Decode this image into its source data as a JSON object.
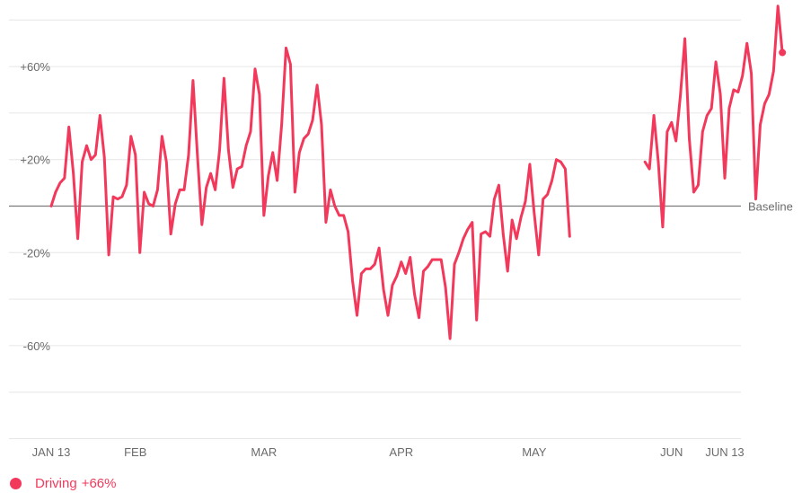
{
  "chart_data": {
    "type": "line",
    "title": "",
    "xlabel": "",
    "ylabel": "",
    "ylim": [
      -100,
      85
    ],
    "y_ticks": [
      {
        "value": 60,
        "label": "+60%"
      },
      {
        "value": 20,
        "label": "+20%"
      },
      {
        "value": -20,
        "label": "-20%"
      },
      {
        "value": -60,
        "label": "-60%"
      }
    ],
    "gridlines": [
      80,
      40,
      0,
      -40,
      -80,
      -100
    ],
    "baseline": {
      "value": 0,
      "label": "Baseline"
    },
    "x_start": "2020-01-13",
    "x_end": "2020-06-13",
    "x_ticks": [
      {
        "date": "2020-01-13",
        "label": "JAN 13"
      },
      {
        "date": "2020-02-01",
        "label": "FEB"
      },
      {
        "date": "2020-03-01",
        "label": "MAR"
      },
      {
        "date": "2020-04-01",
        "label": "APR"
      },
      {
        "date": "2020-05-01",
        "label": "MAY"
      },
      {
        "date": "2020-06-01",
        "label": "JUN"
      },
      {
        "date": "2020-06-13",
        "label": "JUN 13"
      }
    ],
    "series": [
      {
        "name": "Driving",
        "color": "#f2395b",
        "segments": [
          {
            "start": "2020-01-13",
            "values": [
              0,
              6,
              10,
              12,
              34,
              14,
              -14,
              19,
              26,
              20,
              22,
              39,
              21,
              -21,
              4,
              3,
              4,
              9,
              30,
              22,
              -20,
              6,
              1,
              0,
              7,
              30,
              19,
              -12,
              1,
              7,
              7,
              22,
              54,
              22,
              -8,
              8,
              14,
              7,
              24,
              55,
              24,
              8,
              16,
              17,
              26,
              32,
              59,
              48,
              -4,
              13,
              23,
              11,
              35,
              68,
              61,
              6,
              23,
              29,
              31,
              37,
              52,
              35,
              -7,
              7,
              0,
              -4,
              -4,
              -11,
              -32,
              -47,
              -29,
              -27,
              -27,
              -25,
              -18,
              -36,
              -47,
              -34,
              -30,
              -24,
              -29,
              -22,
              -38,
              -48,
              -28,
              -26,
              -23,
              -23,
              -23,
              -35,
              -57,
              -25,
              -20,
              -14,
              -10,
              -7,
              -49,
              -12,
              -11,
              -13,
              3,
              9,
              -12,
              -28,
              -6,
              -14,
              -5,
              2,
              18,
              -3,
              -21,
              3,
              5,
              11,
              20,
              19,
              16,
              -13
            ]
          },
          {
            "start": "2020-05-26",
            "values": [
              19,
              16,
              39,
              19,
              -9,
              32,
              36,
              28,
              48,
              72,
              29,
              6,
              9,
              32,
              39,
              42,
              62,
              48,
              12,
              42,
              50,
              49,
              56,
              70,
              57,
              3,
              35,
              44,
              48,
              58,
              86,
              66
            ]
          }
        ]
      }
    ]
  },
  "legend": {
    "label": "Driving",
    "value": "+66%"
  }
}
